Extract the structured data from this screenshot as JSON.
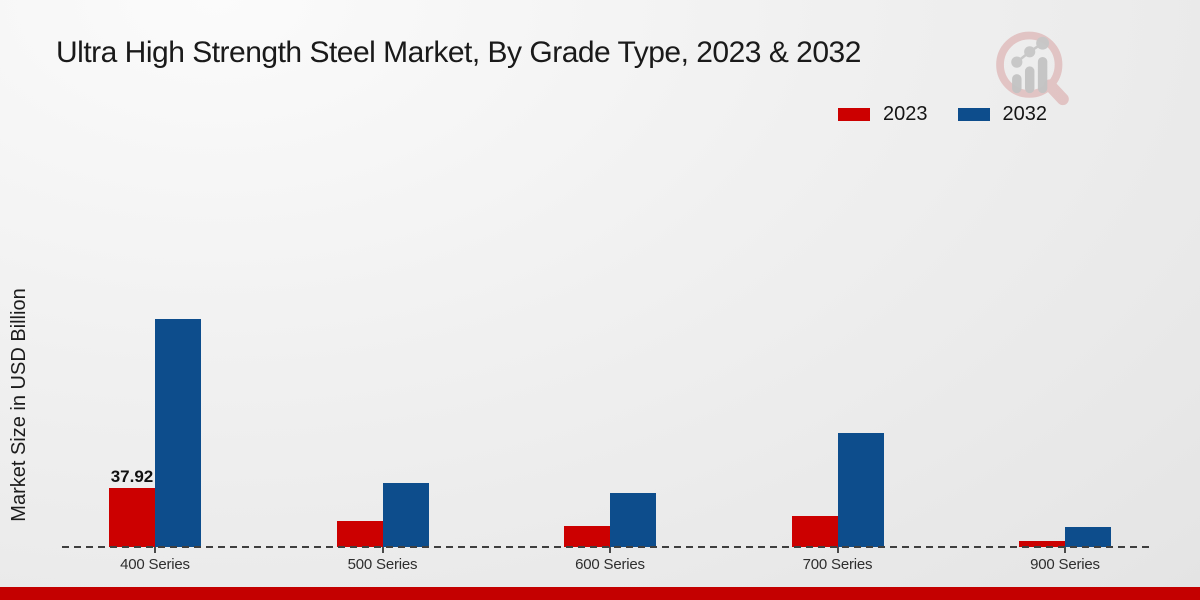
{
  "title": "Ultra High Strength Steel Market, By Grade Type, 2023 & 2032",
  "ylabel": "Market Size in USD Billion",
  "legend": [
    {
      "label": "2023",
      "color": "#cc0000"
    },
    {
      "label": "2032",
      "color": "#0d4d8c"
    }
  ],
  "footer": {
    "color": "#c40000"
  },
  "watermark_icon": "magnifier-bar-chart-logo",
  "chart_data": {
    "type": "bar",
    "categories": [
      "400 Series",
      "500 Series",
      "600 Series",
      "700 Series",
      "900 Series"
    ],
    "series": [
      {
        "name": "2023",
        "color": "#cc0000",
        "values": [
          37.92,
          16.9,
          13.7,
          19.7,
          4.0
        ]
      },
      {
        "name": "2032",
        "color": "#0d4d8c",
        "values": [
          146.3,
          40.9,
          34.7,
          73.3,
          12.6
        ]
      }
    ],
    "title": "Ultra High Strength Steel Market, By Grade Type, 2023 & 2032",
    "xlabel": "",
    "ylabel": "Market Size in USD Billion",
    "ylim": [
      0,
      160
    ],
    "grid": false,
    "y_axis_ticks_visible": false,
    "baseline_style": "dashed",
    "legend_position": "top-right",
    "data_labels": [
      {
        "series": "2023",
        "category": "400 Series",
        "text": "37.92"
      }
    ]
  }
}
